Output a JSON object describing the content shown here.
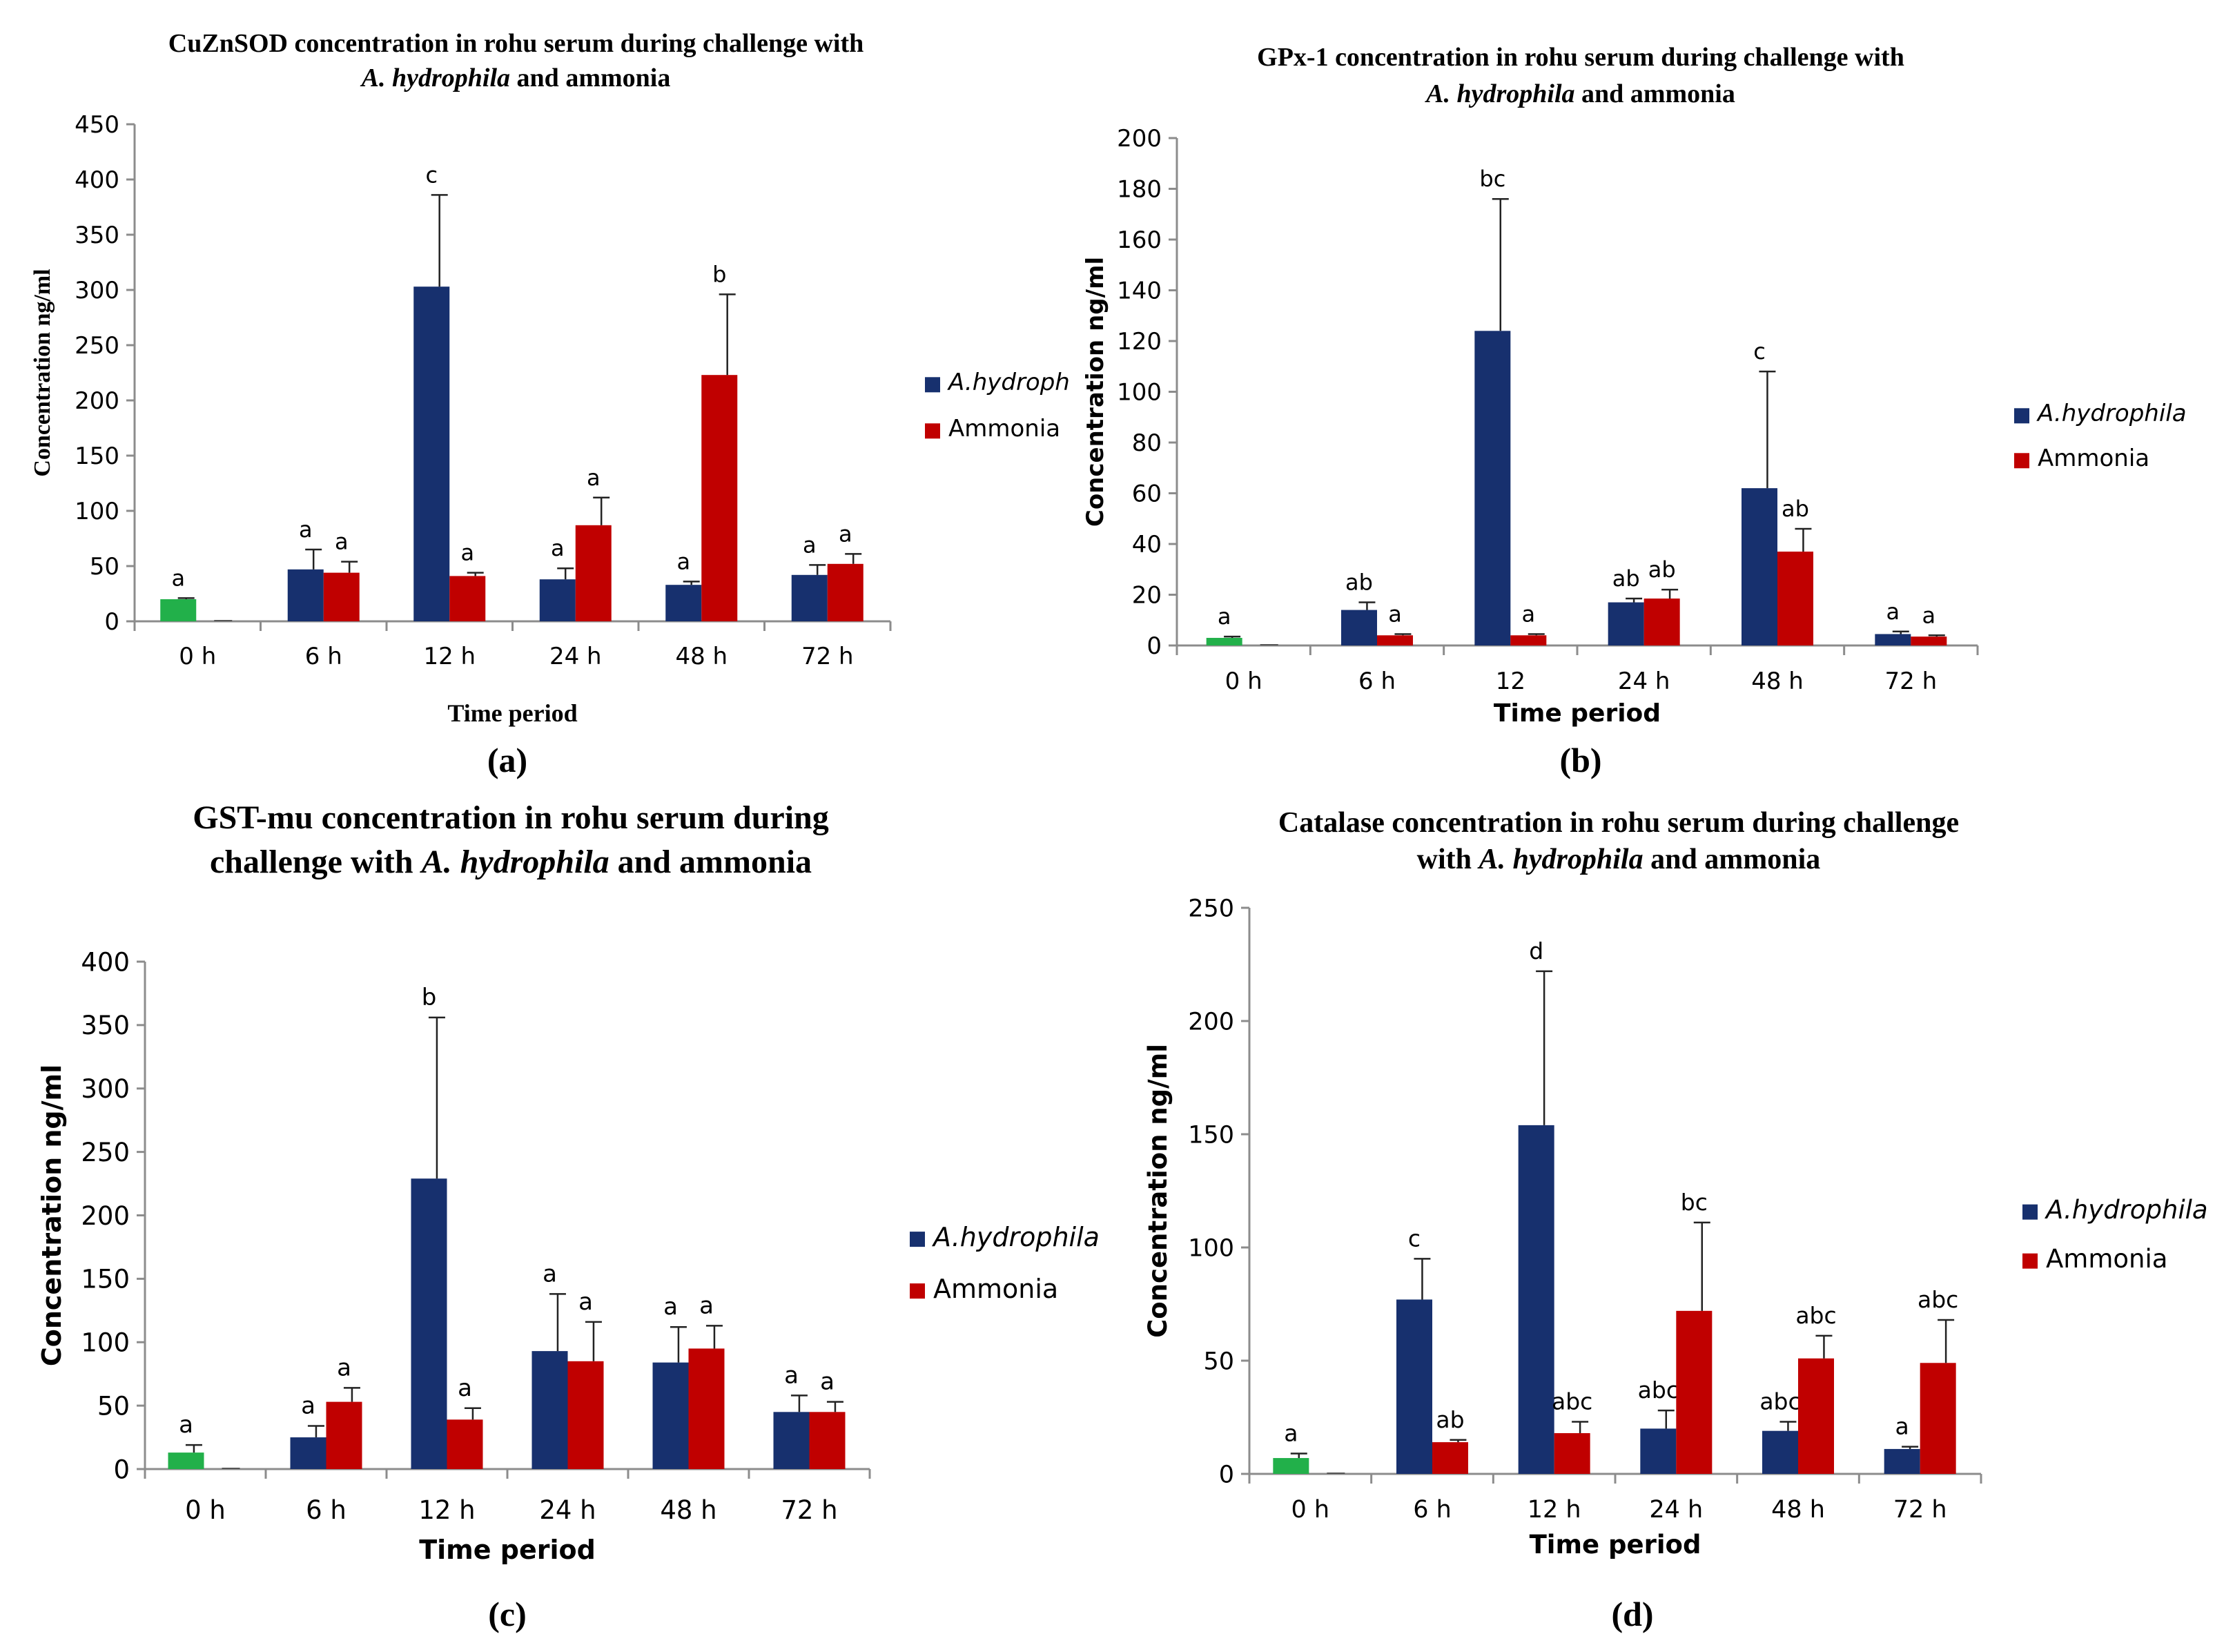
{
  "colors": {
    "ahydrophila": "#17306e",
    "ammonia": "#c00000",
    "control": "#22b04a",
    "axis": "#8c8c8c",
    "text": "#000000"
  },
  "chart_data": [
    {
      "id": "a",
      "type": "bar",
      "title_lines": [
        [
          {
            "t": "CuZnSOD concentration in rohu serum during challenge with",
            "i": false
          }
        ],
        [
          {
            "t": "A. hydrophila",
            "i": true
          },
          {
            "t": " and ammonia",
            "i": false
          }
        ]
      ],
      "panel_label": "(a)",
      "xlabel": "Time period",
      "ylabel": "Concentration ng/ml",
      "ylim": [
        0,
        450
      ],
      "yticks": [
        0,
        50,
        100,
        150,
        200,
        250,
        300,
        350,
        400,
        450
      ],
      "categories": [
        "0 h",
        "6 h",
        "12 h",
        "24 h",
        "48 h",
        "72 h"
      ],
      "control": {
        "value": 20,
        "err": 1,
        "label": "a"
      },
      "series": [
        {
          "name": "A.hydroph",
          "values": [
            0,
            47,
            303,
            38,
            33,
            42
          ],
          "errors": [
            0,
            18,
            83,
            10,
            3,
            9
          ],
          "letters": [
            "",
            "a",
            "c",
            "a",
            "a",
            "a"
          ]
        },
        {
          "name": "Ammonia",
          "values": [
            0,
            44,
            41,
            87,
            223,
            52
          ],
          "errors": [
            0,
            10,
            3,
            25,
            73,
            9
          ],
          "letters": [
            "",
            "a",
            "a",
            "a",
            "b",
            "a"
          ]
        }
      ]
    },
    {
      "id": "b",
      "type": "bar",
      "title_lines": [
        [
          {
            "t": "GPx-1 concentration in rohu serum during challenge with",
            "i": false
          }
        ],
        [
          {
            "t": "A. hydrophila",
            "i": true
          },
          {
            "t": " and ammonia",
            "i": false
          }
        ]
      ],
      "panel_label": "(b)",
      "xlabel": "Time period",
      "ylabel": "Concentration ng/ml",
      "ylim": [
        0,
        200
      ],
      "yticks": [
        0,
        20,
        40,
        60,
        80,
        100,
        120,
        140,
        160,
        180,
        200
      ],
      "categories": [
        "0 h",
        "6 h",
        "12",
        "24 h",
        "48 h",
        "72 h"
      ],
      "control": {
        "value": 3,
        "err": 0.5,
        "label": "a"
      },
      "series": [
        {
          "name": "A.hydrophila",
          "values": [
            0,
            14,
            124,
            17,
            62,
            4.5
          ],
          "errors": [
            0,
            3,
            52,
            1.5,
            46,
            1
          ],
          "letters": [
            "",
            "ab",
            "bc",
            "ab",
            "c",
            "a"
          ]
        },
        {
          "name": "Ammonia",
          "values": [
            0,
            4,
            4,
            18.5,
            37,
            3.5
          ],
          "errors": [
            0,
            0.5,
            0.5,
            3.5,
            9,
            0.5
          ],
          "letters": [
            "",
            "a",
            "a",
            "ab",
            "ab",
            "a"
          ]
        }
      ]
    },
    {
      "id": "c",
      "type": "bar",
      "title_lines": [
        [
          {
            "t": "GST-mu concentration in rohu serum during",
            "i": false
          }
        ],
        [
          {
            "t": "challenge with ",
            "i": false
          },
          {
            "t": "A. hydrophila",
            "i": true
          },
          {
            "t": " and ammonia",
            "i": false
          }
        ]
      ],
      "panel_label": "(c)",
      "xlabel": "Time period",
      "ylabel": "Concentration ng/ml",
      "ylim": [
        0,
        400
      ],
      "yticks": [
        0,
        50,
        100,
        150,
        200,
        250,
        300,
        350,
        400
      ],
      "categories": [
        "0 h",
        "6 h",
        "12 h",
        "24 h",
        "48 h",
        "72 h"
      ],
      "control": {
        "value": 13,
        "err": 6,
        "label": "a"
      },
      "series": [
        {
          "name": "A.hydrophila",
          "values": [
            0,
            25,
            229,
            93,
            84,
            45
          ],
          "errors": [
            0,
            9,
            127,
            45,
            28,
            13
          ],
          "letters": [
            "",
            "a",
            "b",
            "a",
            "a",
            "a"
          ]
        },
        {
          "name": "Ammonia",
          "values": [
            0,
            53,
            39,
            85,
            95,
            45
          ],
          "errors": [
            0,
            11,
            9,
            31,
            18,
            8
          ],
          "letters": [
            "",
            "a",
            "a",
            "a",
            "a",
            "a"
          ]
        }
      ]
    },
    {
      "id": "d",
      "type": "bar",
      "title_lines": [
        [
          {
            "t": "Catalase concentration in rohu serum during challenge",
            "i": false
          }
        ],
        [
          {
            "t": "with  ",
            "i": false
          },
          {
            "t": "A. hydrophila",
            "i": true
          },
          {
            "t": " and ammonia",
            "i": false
          }
        ]
      ],
      "panel_label": "(d)",
      "xlabel": "Time period",
      "ylabel": "Concentration ng/ml",
      "ylim": [
        0,
        250
      ],
      "yticks": [
        0,
        50,
        100,
        150,
        200,
        250
      ],
      "categories": [
        "0 h",
        "6 h",
        "12 h",
        "24 h",
        "48 h",
        "72 h"
      ],
      "control": {
        "value": 7,
        "err": 2,
        "label": "a"
      },
      "series": [
        {
          "name": "A.hydrophila",
          "values": [
            0,
            77,
            154,
            20,
            19,
            11
          ],
          "errors": [
            0,
            18,
            68,
            8,
            4,
            1
          ],
          "letters": [
            "",
            "c",
            "d",
            "abc",
            "abc",
            "a"
          ]
        },
        {
          "name": "Ammonia",
          "values": [
            0,
            14,
            18,
            72,
            51,
            49
          ],
          "errors": [
            0,
            1,
            5,
            39,
            10,
            19
          ],
          "letters": [
            "",
            "ab",
            "abc",
            "bc",
            "abc",
            "abc"
          ]
        }
      ]
    }
  ]
}
